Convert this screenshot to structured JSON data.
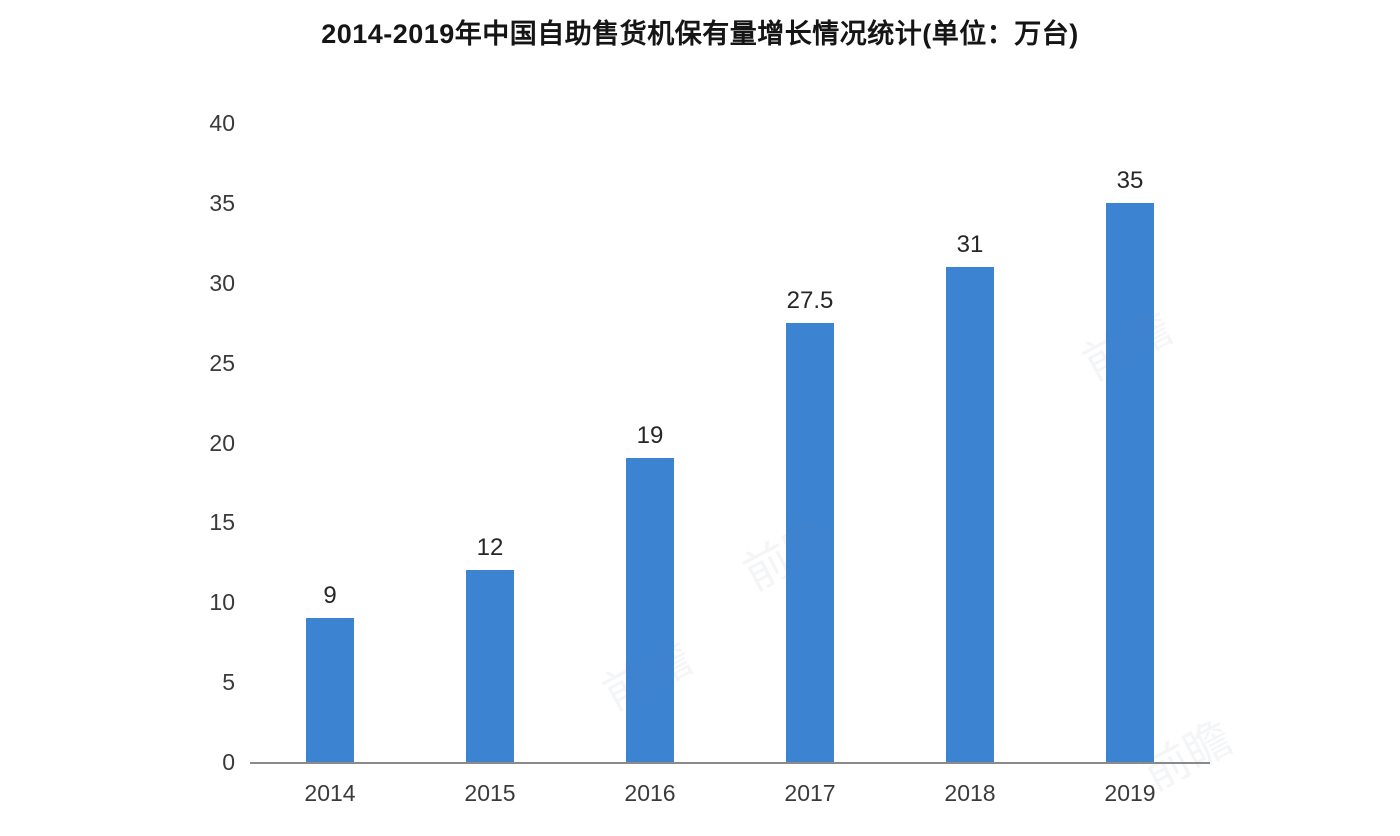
{
  "chart_data": {
    "type": "bar",
    "title": "2014-2019年中国自助售货机保有量增长情况统计(单位：万台)",
    "categories": [
      "2014",
      "2015",
      "2016",
      "2017",
      "2018",
      "2019"
    ],
    "values": [
      9,
      12,
      19,
      27.5,
      31,
      35
    ],
    "value_labels": [
      "9",
      "12",
      "19",
      "27.5",
      "31",
      "35"
    ],
    "xlabel": "",
    "ylabel": "",
    "ylim": [
      0,
      40
    ],
    "yticks": [
      0,
      5,
      10,
      15,
      20,
      25,
      30,
      35,
      40
    ],
    "grid": false,
    "legend_position": "none",
    "bar_color": "#3c83d2",
    "axis_color": "#8a8a8a",
    "title_color": "#151515",
    "label_color": "#3a3a3a"
  },
  "watermark": {
    "text": "前瞻"
  }
}
